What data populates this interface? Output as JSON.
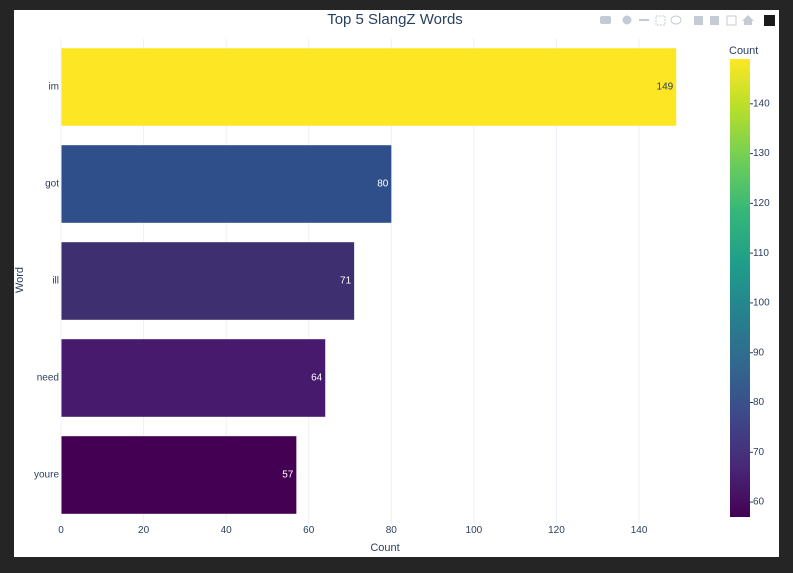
{
  "chart_data": {
    "type": "bar",
    "orientation": "h",
    "title": "Top 5 SlangZ Words",
    "xlabel": "Count",
    "ylabel": "Word",
    "categories": [
      "im",
      "got",
      "ill",
      "need",
      "youre"
    ],
    "values": [
      149,
      80,
      71,
      64,
      57
    ],
    "colors": [
      "#fde725",
      "#2f4f8b",
      "#3d2f70",
      "#471a6e",
      "#440154"
    ],
    "xlim": [
      0,
      157
    ],
    "xticks": [
      0,
      20,
      40,
      60,
      80,
      100,
      120,
      140
    ],
    "grid": true,
    "colorbar": {
      "title": "Count",
      "lim": [
        57,
        149
      ],
      "ticks": [
        60,
        70,
        80,
        90,
        100,
        110,
        120,
        130,
        140
      ],
      "colorscale": [
        "#440154",
        "#482878",
        "#3e4989",
        "#31688e",
        "#26828e",
        "#1f9e89",
        "#35b779",
        "#6ece58",
        "#b5de2b",
        "#fde725"
      ]
    }
  }
}
